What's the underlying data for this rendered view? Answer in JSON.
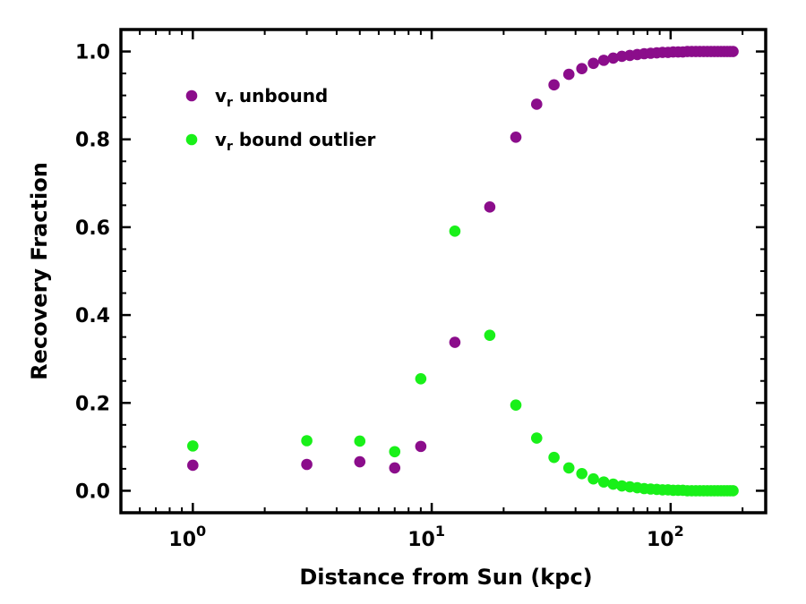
{
  "chart_data": {
    "type": "scatter",
    "title": "",
    "xlabel": "Distance from Sun (kpc)",
    "ylabel": "Recovery Fraction",
    "xscale": "log",
    "xlim": [
      0.5,
      250
    ],
    "ylim": [
      -0.05,
      1.05
    ],
    "grid": false,
    "legend_position": "top-left",
    "x_major_ticks": [
      {
        "value": 1,
        "base": "10",
        "exp": "0"
      },
      {
        "value": 10,
        "base": "10",
        "exp": "1"
      },
      {
        "value": 100,
        "base": "10",
        "exp": "2"
      }
    ],
    "y_ticks": [
      {
        "value": 0.0,
        "label": "0.0"
      },
      {
        "value": 0.2,
        "label": "0.2"
      },
      {
        "value": 0.4,
        "label": "0.4"
      },
      {
        "value": 0.6,
        "label": "0.6"
      },
      {
        "value": 0.8,
        "label": "0.8"
      },
      {
        "value": 1.0,
        "label": "1.0"
      }
    ],
    "series": [
      {
        "name": "v_r unbound",
        "legend_main": "v",
        "legend_sub": "r",
        "legend_rest": " unbound",
        "color": "#8b0d8b",
        "points": [
          [
            1,
            0.058
          ],
          [
            3,
            0.06
          ],
          [
            5,
            0.066
          ],
          [
            7,
            0.052
          ],
          [
            9,
            0.101
          ],
          [
            12.5,
            0.338
          ],
          [
            17.5,
            0.646
          ],
          [
            22.5,
            0.805
          ],
          [
            27.5,
            0.88
          ],
          [
            32.5,
            0.924
          ],
          [
            37.5,
            0.948
          ],
          [
            42.5,
            0.961
          ],
          [
            47.5,
            0.973
          ],
          [
            52.5,
            0.98
          ],
          [
            57.5,
            0.985
          ],
          [
            62.5,
            0.989
          ],
          [
            67.5,
            0.991
          ],
          [
            72.5,
            0.993
          ],
          [
            77.5,
            0.995
          ],
          [
            82.5,
            0.996
          ],
          [
            87.5,
            0.997
          ],
          [
            92.5,
            0.998
          ],
          [
            97.5,
            0.998
          ],
          [
            102.5,
            0.999
          ],
          [
            107.5,
            0.999
          ],
          [
            112.5,
            0.999
          ],
          [
            117.5,
            1.0
          ],
          [
            122.5,
            1.0
          ],
          [
            127.5,
            1.0
          ],
          [
            132.5,
            1.0
          ],
          [
            137.5,
            1.0
          ],
          [
            142.5,
            1.0
          ],
          [
            147.5,
            1.0
          ],
          [
            152.5,
            1.0
          ],
          [
            157.5,
            1.0
          ],
          [
            162.5,
            1.0
          ],
          [
            167.5,
            1.0
          ],
          [
            172.5,
            1.0
          ],
          [
            177.5,
            1.0
          ],
          [
            182.5,
            1.0
          ]
        ]
      },
      {
        "name": "v_r bound outlier",
        "legend_main": "v",
        "legend_sub": "r",
        "legend_rest": " bound outlier",
        "color": "#19f019",
        "points": [
          [
            1,
            0.102
          ],
          [
            3,
            0.114
          ],
          [
            5,
            0.113
          ],
          [
            7,
            0.089
          ],
          [
            9,
            0.255
          ],
          [
            12.5,
            0.591
          ],
          [
            17.5,
            0.354
          ],
          [
            22.5,
            0.195
          ],
          [
            27.5,
            0.12
          ],
          [
            32.5,
            0.076
          ],
          [
            37.5,
            0.052
          ],
          [
            42.5,
            0.039
          ],
          [
            47.5,
            0.027
          ],
          [
            52.5,
            0.02
          ],
          [
            57.5,
            0.015
          ],
          [
            62.5,
            0.011
          ],
          [
            67.5,
            0.009
          ],
          [
            72.5,
            0.007
          ],
          [
            77.5,
            0.005
          ],
          [
            82.5,
            0.004
          ],
          [
            87.5,
            0.003
          ],
          [
            92.5,
            0.002
          ],
          [
            97.5,
            0.002
          ],
          [
            102.5,
            0.001
          ],
          [
            107.5,
            0.001
          ],
          [
            112.5,
            0.001
          ],
          [
            117.5,
            0.0
          ],
          [
            122.5,
            0.0
          ],
          [
            127.5,
            0.0
          ],
          [
            132.5,
            0.0
          ],
          [
            137.5,
            0.0
          ],
          [
            142.5,
            0.0
          ],
          [
            147.5,
            0.0
          ],
          [
            152.5,
            0.0
          ],
          [
            157.5,
            0.0
          ],
          [
            162.5,
            0.0
          ],
          [
            167.5,
            0.0
          ],
          [
            172.5,
            0.0
          ],
          [
            177.5,
            0.0
          ],
          [
            182.5,
            0.0
          ]
        ]
      }
    ]
  }
}
